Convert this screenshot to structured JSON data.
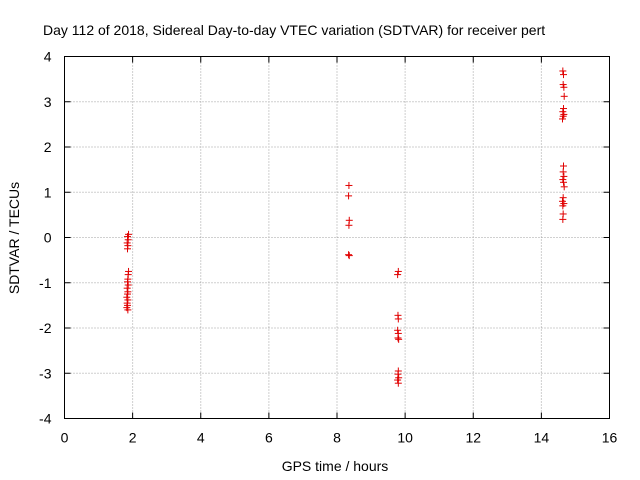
{
  "chart_data": {
    "type": "scatter",
    "title": "Day 112 of 2018, Sidereal Day-to-day VTEC variation (SDTVAR) for receiver pert",
    "xlabel": "GPS time / hours",
    "ylabel": "SDTVAR / TECUs",
    "xlim": [
      0,
      16
    ],
    "ylim": [
      -4,
      4
    ],
    "xticks": [
      0,
      2,
      4,
      6,
      8,
      10,
      12,
      14,
      16
    ],
    "yticks": [
      -4,
      -3,
      -2,
      -1,
      0,
      1,
      2,
      3,
      4
    ],
    "grid": true,
    "marker": "+",
    "color": "#e00000",
    "series": [
      {
        "name": "SDTVAR",
        "points": [
          [
            1.88,
            0.07
          ],
          [
            1.85,
            0.02
          ],
          [
            1.87,
            -0.05
          ],
          [
            1.84,
            -0.12
          ],
          [
            1.86,
            -0.18
          ],
          [
            1.85,
            -0.25
          ],
          [
            1.88,
            -0.75
          ],
          [
            1.87,
            -0.82
          ],
          [
            1.86,
            -0.92
          ],
          [
            1.85,
            -0.98
          ],
          [
            1.87,
            -1.05
          ],
          [
            1.84,
            -1.12
          ],
          [
            1.86,
            -1.2
          ],
          [
            1.85,
            -1.25
          ],
          [
            1.83,
            -1.32
          ],
          [
            1.86,
            -1.38
          ],
          [
            1.84,
            -1.45
          ],
          [
            1.85,
            -1.5
          ],
          [
            1.83,
            -1.55
          ],
          [
            1.86,
            -1.6
          ],
          [
            8.35,
            1.15
          ],
          [
            8.34,
            0.92
          ],
          [
            8.36,
            0.38
          ],
          [
            8.35,
            0.27
          ],
          [
            8.34,
            -0.38
          ],
          [
            8.36,
            -0.4
          ],
          [
            9.8,
            -0.75
          ],
          [
            9.78,
            -0.82
          ],
          [
            9.79,
            -1.72
          ],
          [
            9.8,
            -1.8
          ],
          [
            9.78,
            -2.05
          ],
          [
            9.8,
            -2.12
          ],
          [
            9.79,
            -2.22
          ],
          [
            9.81,
            -2.25
          ],
          [
            9.8,
            -2.95
          ],
          [
            9.79,
            -3.02
          ],
          [
            9.81,
            -3.1
          ],
          [
            9.78,
            -3.15
          ],
          [
            9.8,
            -3.22
          ],
          [
            14.63,
            3.68
          ],
          [
            14.65,
            3.6
          ],
          [
            14.64,
            3.38
          ],
          [
            14.66,
            3.32
          ],
          [
            14.67,
            3.12
          ],
          [
            14.65,
            2.85
          ],
          [
            14.63,
            2.78
          ],
          [
            14.66,
            2.72
          ],
          [
            14.64,
            2.68
          ],
          [
            14.62,
            2.62
          ],
          [
            14.65,
            1.58
          ],
          [
            14.64,
            1.45
          ],
          [
            14.66,
            1.35
          ],
          [
            14.63,
            1.28
          ],
          [
            14.65,
            1.22
          ],
          [
            14.67,
            1.12
          ],
          [
            14.64,
            0.88
          ],
          [
            14.62,
            0.8
          ],
          [
            14.66,
            0.75
          ],
          [
            14.63,
            0.7
          ],
          [
            14.64,
            0.52
          ],
          [
            14.63,
            0.4
          ]
        ]
      }
    ]
  }
}
